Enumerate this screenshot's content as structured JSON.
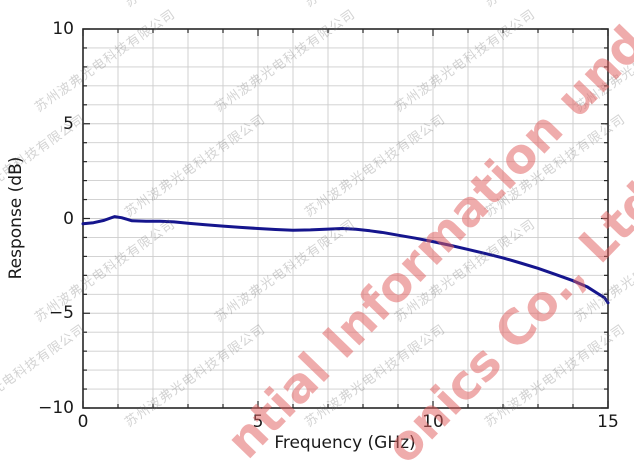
{
  "chart_data": {
    "type": "line",
    "title": "",
    "xlabel": "Frequency (GHz)",
    "ylabel": "Response (dB)",
    "xlim": [
      0,
      15
    ],
    "ylim": [
      -10,
      10
    ],
    "x_major_ticks": [
      0,
      5,
      10,
      15
    ],
    "y_major_ticks": [
      -10,
      -5,
      0,
      5,
      10
    ],
    "minor_grid_step": 1,
    "grid": "light gray gridlines every 1 unit on both axes",
    "legend": "none",
    "line_color": "#15158d",
    "series": [
      {
        "name": "Response",
        "x": [
          0,
          0.3,
          0.6,
          0.9,
          1.1,
          1.4,
          1.8,
          2.2,
          2.6,
          3.0,
          3.5,
          4.0,
          4.5,
          5.0,
          5.5,
          6.0,
          6.5,
          7.0,
          7.4,
          7.8,
          8.2,
          8.6,
          9.0,
          9.5,
          10.0,
          10.5,
          11.0,
          11.5,
          12.0,
          12.5,
          13.0,
          13.5,
          14.0,
          14.4,
          14.7,
          14.9,
          15.0
        ],
        "y": [
          -0.28,
          -0.22,
          -0.1,
          0.1,
          0.04,
          -0.12,
          -0.15,
          -0.15,
          -0.18,
          -0.25,
          -0.33,
          -0.4,
          -0.47,
          -0.53,
          -0.58,
          -0.62,
          -0.6,
          -0.56,
          -0.53,
          -0.57,
          -0.65,
          -0.75,
          -0.88,
          -1.04,
          -1.22,
          -1.42,
          -1.63,
          -1.85,
          -2.08,
          -2.35,
          -2.63,
          -2.95,
          -3.28,
          -3.6,
          -3.95,
          -4.18,
          -4.45
        ]
      }
    ]
  },
  "watermarks": {
    "company_cn": "苏州波弗光电科技有限公司",
    "red_text_line1": "ntial Information unde",
    "red_text_line2": "onics Co., Ltd.,",
    "red_color": "#e15f5f",
    "gray_color": "#6e6e6e"
  }
}
